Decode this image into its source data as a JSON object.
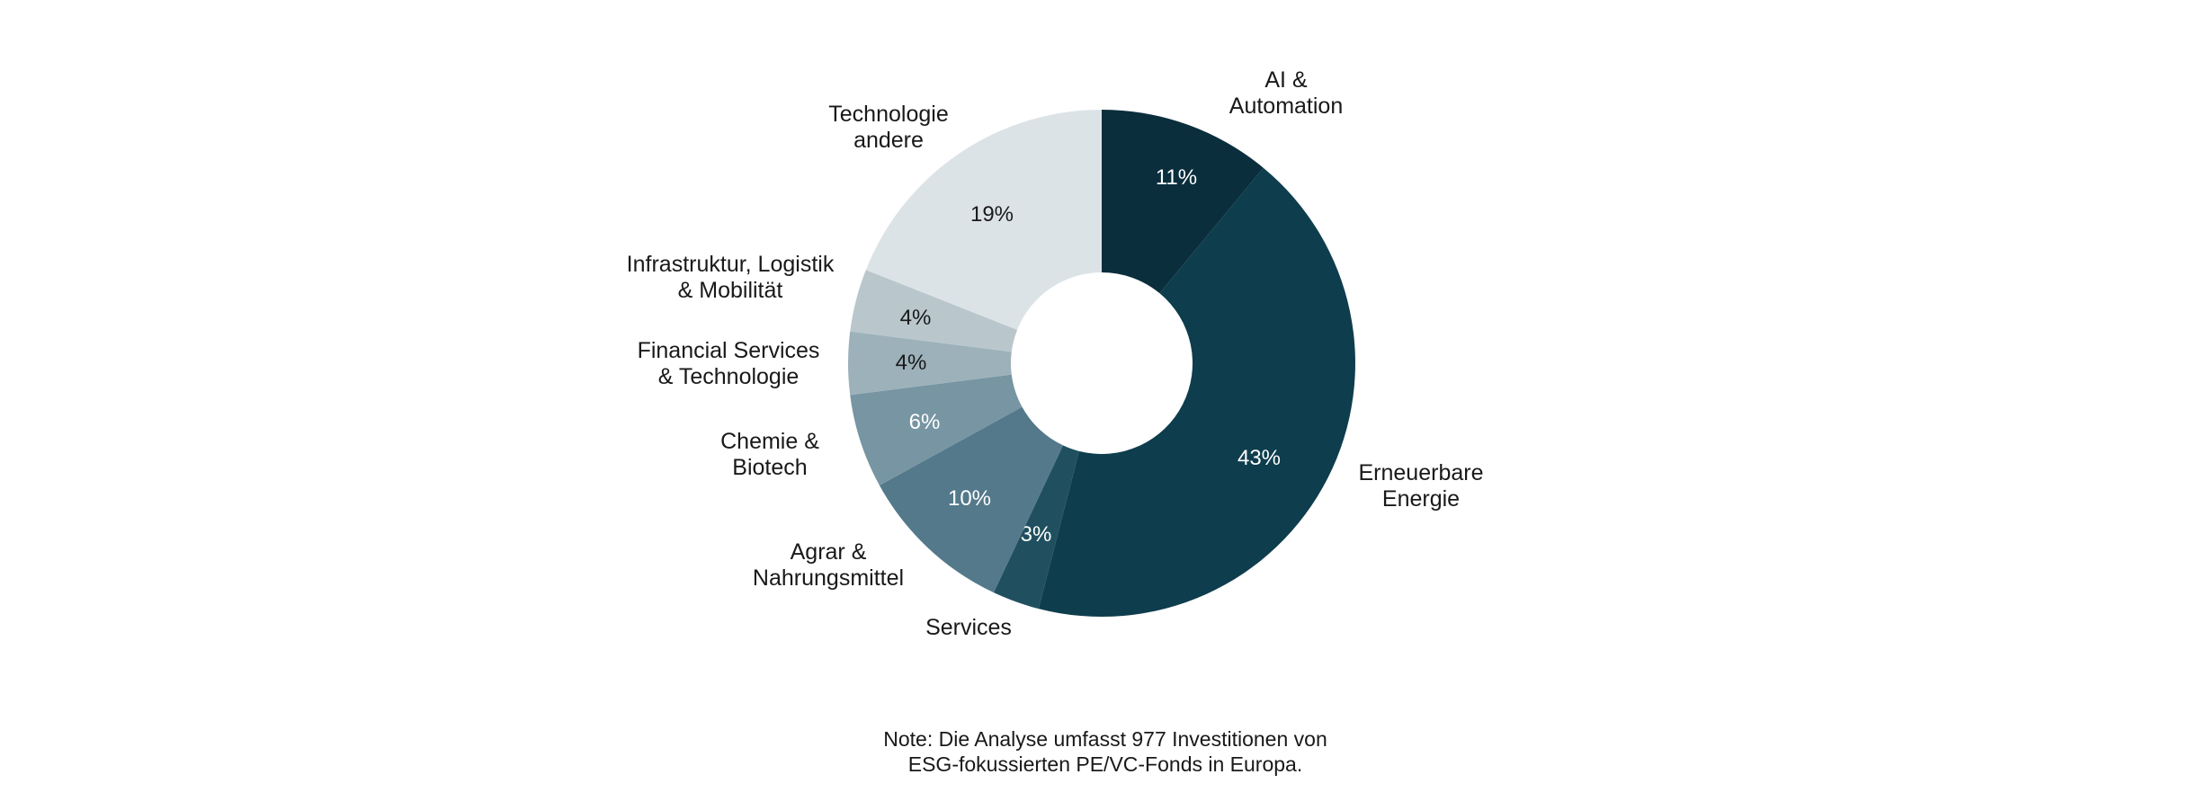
{
  "chart_data": {
    "type": "pie",
    "subtype": "donut",
    "title": "",
    "unit": "%",
    "direction": "clockwise",
    "start_angle_deg": 0,
    "legend_position": "outside-labels",
    "segments": [
      {
        "label": "AI & Automation",
        "label_lines": [
          "AI &",
          "Automation"
        ],
        "value": 11,
        "pct_label": "11%",
        "color": "#0a2e3c",
        "pct_color": "#ffffff"
      },
      {
        "label": "Erneuerbare Energie",
        "label_lines": [
          "Erneuerbare",
          "Energie"
        ],
        "value": 43,
        "pct_label": "43%",
        "color": "#0e3d4d",
        "pct_color": "#ffffff"
      },
      {
        "label": "Services",
        "label_lines": [
          "Services"
        ],
        "value": 3,
        "pct_label": "3%",
        "color": "#20505f",
        "pct_color": "#ffffff"
      },
      {
        "label": "Agrar & Nahrungsmittel",
        "label_lines": [
          "Agrar &",
          "Nahrungsmittel"
        ],
        "value": 10,
        "pct_label": "10%",
        "color": "#54798b",
        "pct_color": "#ffffff"
      },
      {
        "label": "Chemie & Biotech",
        "label_lines": [
          "Chemie &",
          "Biotech"
        ],
        "value": 6,
        "pct_label": "6%",
        "color": "#7795a2",
        "pct_color": "#ffffff"
      },
      {
        "label": "Financial Services & Technologie",
        "label_lines": [
          "Financial Services",
          "& Technologie"
        ],
        "value": 4,
        "pct_label": "4%",
        "color": "#9db1ba",
        "pct_color": "#191919"
      },
      {
        "label": "Infrastruktur, Logistik & Mobilität",
        "label_lines": [
          "Infrastruktur, Logistik",
          "& Mobilität"
        ],
        "value": 4,
        "pct_label": "4%",
        "color": "#b9c7cd",
        "pct_color": "#191919"
      },
      {
        "label": "Technologie andere",
        "label_lines": [
          "Technologie",
          "andere"
        ],
        "value": 19,
        "pct_label": "19%",
        "color": "#dce3e7",
        "pct_color": "#191919"
      }
    ]
  },
  "note": {
    "line1": "Note: Die Analyse umfasst 977 Investitionen von",
    "line2": "ESG-fokussierten PE/VC-Fonds in Europa."
  },
  "colors": {
    "background": "#ffffff",
    "text": "#191919"
  }
}
